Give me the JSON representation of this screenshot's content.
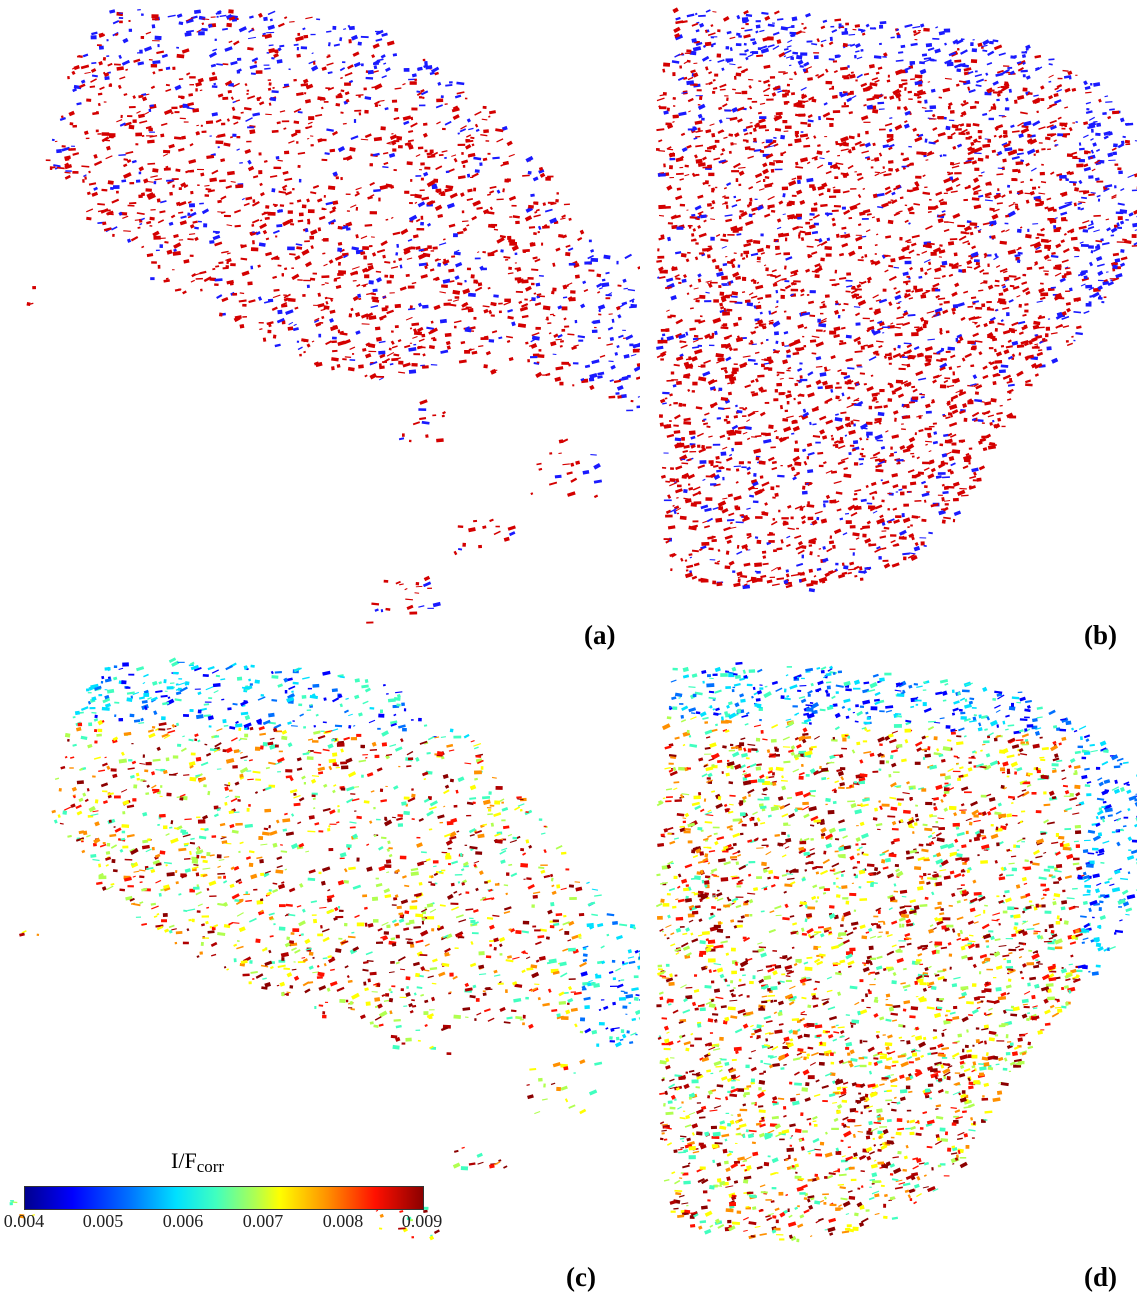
{
  "panels": {
    "a": {
      "label": "(a)",
      "scheme": "two-color"
    },
    "b": {
      "label": "(b)",
      "scheme": "two-color"
    },
    "c": {
      "label": "(c)",
      "scheme": "colormap"
    },
    "d": {
      "label": "(d)",
      "scheme": "colormap"
    }
  },
  "colorbar": {
    "title": "I/F",
    "title_sub": "corr",
    "ticks": [
      "0.004",
      "0.005",
      "0.006",
      "0.007",
      "0.008",
      "0.009"
    ],
    "range": [
      0.004,
      0.009
    ]
  },
  "colors": {
    "two_color_red": "#d40000",
    "two_color_blue": "#1a1aff",
    "background": "#ffffff"
  }
}
